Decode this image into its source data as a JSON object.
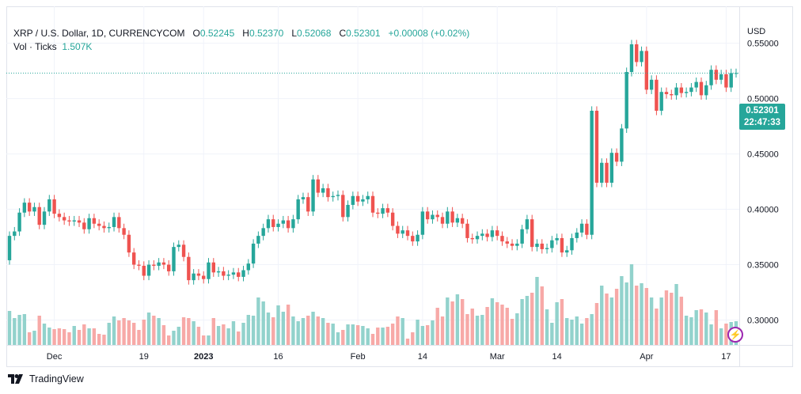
{
  "header": {
    "symbol": "XRP / U.S. Dollar, 1D, CURRENCYCOM",
    "open_label": "O",
    "open": "0.52245",
    "high_label": "H",
    "high": "0.52370",
    "low_label": "L",
    "low": "0.52068",
    "close_label": "C",
    "close": "0.52301",
    "change": "+0.00008 (+0.02%)",
    "vol_label": "Vol · Ticks",
    "vol_value": "1.507K"
  },
  "price_axis": {
    "currency": "USD",
    "last_price": "0.52301",
    "countdown": "22:47:33"
  },
  "branding": {
    "logo_text": "TradingView"
  },
  "colors": {
    "up": "#26a69a",
    "down": "#ef5350",
    "vol_up": "#92d2cc",
    "vol_down": "#f7a9a7",
    "grid": "#f0f3fa"
  },
  "chart_data": {
    "type": "candlestick",
    "title": "XRP / U.S. Dollar, 1D",
    "ylabel": "USD",
    "ylim": [
      0.2775,
      0.5833
    ],
    "y_ticks": [
      "0.30000",
      "0.35000",
      "0.40000",
      "0.45000",
      "0.50000",
      "0.55000"
    ],
    "x_ticks": [
      {
        "label": "Dec",
        "index": 9,
        "bold": false
      },
      {
        "label": "19",
        "index": 27,
        "bold": false
      },
      {
        "label": "2023",
        "index": 39,
        "bold": true
      },
      {
        "label": "16",
        "index": 54,
        "bold": false
      },
      {
        "label": "Feb",
        "index": 70,
        "bold": false
      },
      {
        "label": "14",
        "index": 83,
        "bold": false
      },
      {
        "label": "Mar",
        "index": 98,
        "bold": false
      },
      {
        "label": "14",
        "index": 110,
        "bold": false
      },
      {
        "label": "Apr",
        "index": 128,
        "bold": false
      },
      {
        "label": "17",
        "index": 144,
        "bold": false
      }
    ],
    "first_open": 0.354,
    "close": [
      0.376,
      0.38,
      0.397,
      0.406,
      0.398,
      0.402,
      0.386,
      0.398,
      0.409,
      0.396,
      0.393,
      0.39,
      0.389,
      0.39,
      0.388,
      0.382,
      0.392,
      0.387,
      0.385,
      0.383,
      0.384,
      0.393,
      0.383,
      0.377,
      0.361,
      0.35,
      0.349,
      0.34,
      0.35,
      0.349,
      0.352,
      0.35,
      0.344,
      0.366,
      0.368,
      0.357,
      0.336,
      0.342,
      0.34,
      0.337,
      0.352,
      0.343,
      0.344,
      0.34,
      0.341,
      0.343,
      0.339,
      0.345,
      0.351,
      0.369,
      0.376,
      0.383,
      0.391,
      0.384,
      0.387,
      0.39,
      0.383,
      0.391,
      0.409,
      0.411,
      0.398,
      0.427,
      0.415,
      0.419,
      0.411,
      0.412,
      0.413,
      0.393,
      0.404,
      0.412,
      0.407,
      0.409,
      0.412,
      0.397,
      0.396,
      0.401,
      0.397,
      0.385,
      0.378,
      0.381,
      0.376,
      0.371,
      0.377,
      0.398,
      0.391,
      0.395,
      0.393,
      0.387,
      0.398,
      0.388,
      0.392,
      0.387,
      0.374,
      0.373,
      0.376,
      0.378,
      0.375,
      0.381,
      0.376,
      0.371,
      0.369,
      0.367,
      0.369,
      0.382,
      0.391,
      0.366,
      0.369,
      0.364,
      0.365,
      0.372,
      0.374,
      0.361,
      0.363,
      0.374,
      0.379,
      0.387,
      0.377,
      0.489,
      0.424,
      0.442,
      0.424,
      0.451,
      0.443,
      0.473,
      0.524,
      0.549,
      0.533,
      0.543,
      0.508,
      0.517,
      0.489,
      0.506,
      0.504,
      0.503,
      0.51,
      0.505,
      0.506,
      0.51,
      0.515,
      0.503,
      0.512,
      0.526,
      0.517,
      0.522,
      0.51,
      0.523,
      0.52301
    ],
    "volume": [
      43,
      34,
      38,
      39,
      16,
      18,
      37,
      27,
      22,
      20,
      21,
      20,
      16,
      24,
      19,
      26,
      21,
      21,
      14,
      13,
      28,
      36,
      31,
      34,
      31,
      28,
      19,
      32,
      41,
      37,
      34,
      25,
      12,
      18,
      23,
      35,
      34,
      30,
      23,
      12,
      12,
      34,
      24,
      26,
      21,
      30,
      17,
      28,
      38,
      37,
      60,
      55,
      41,
      35,
      50,
      42,
      51,
      36,
      30,
      34,
      37,
      42,
      36,
      34,
      28,
      27,
      16,
      19,
      26,
      26,
      25,
      24,
      21,
      14,
      22,
      22,
      23,
      27,
      36,
      34,
      8,
      16,
      32,
      24,
      25,
      31,
      47,
      36,
      60,
      55,
      64,
      58,
      39,
      46,
      37,
      38,
      48,
      59,
      54,
      51,
      47,
      33,
      40,
      58,
      62,
      66,
      86,
      74,
      45,
      28,
      54,
      58,
      34,
      32,
      36,
      27,
      34,
      39,
      53,
      75,
      65,
      60,
      71,
      87,
      79,
      102,
      75,
      78,
      72,
      60,
      46,
      60,
      69,
      66,
      77,
      61,
      37,
      35,
      44,
      45,
      41,
      26,
      44,
      21,
      27,
      29,
      30
    ]
  }
}
